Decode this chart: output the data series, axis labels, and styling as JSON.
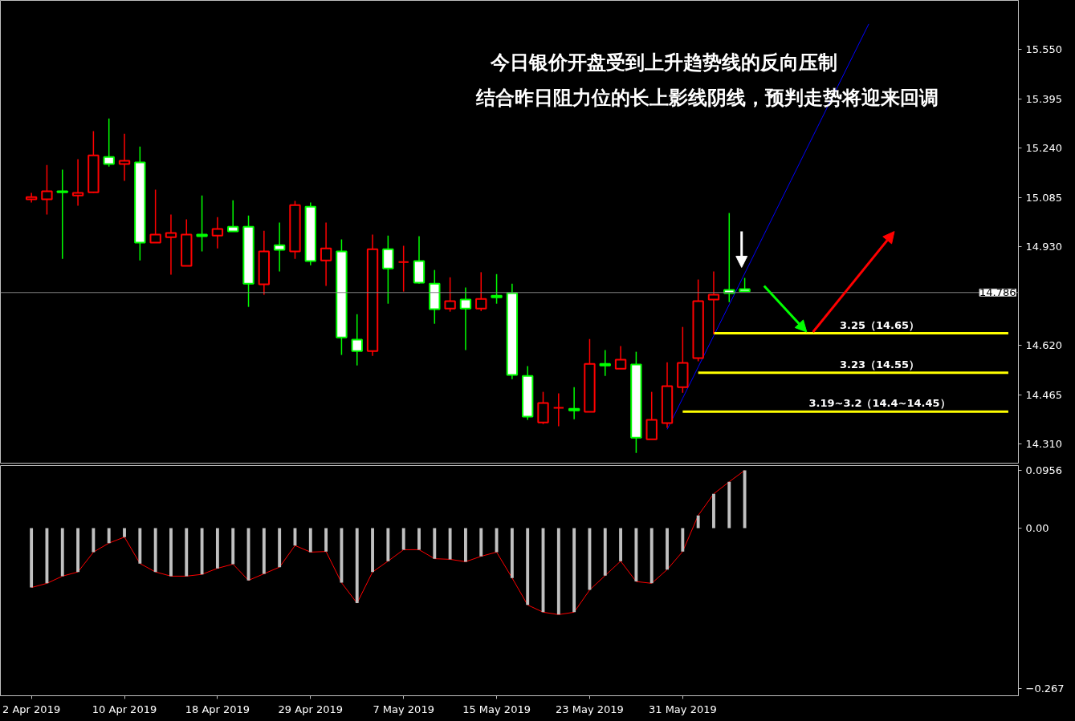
{
  "chart_data": [
    {
      "type": "candlestick",
      "annotations": [
        "今日银价开盘受到上升趋势线的反向压制",
        "结合昨日阻力位的长上影线阴线，预判走势将迎来回调",
        {
          "text": "3.25（14.65）",
          "y": 14.658
        },
        {
          "text": "3.23（14.55）",
          "y": 14.534
        },
        {
          "text": "3.19~3.2（14.4~14.45）",
          "y": 14.412
        }
      ],
      "categories": [
        null,
        null,
        null,
        null,
        null,
        null,
        null,
        null,
        null,
        null,
        null,
        null,
        null,
        null,
        null,
        null,
        null,
        null,
        null,
        null,
        null,
        null,
        null,
        null,
        null,
        null,
        null,
        null,
        null,
        null,
        null,
        null,
        null,
        null,
        null,
        null,
        null,
        null,
        null,
        null,
        null,
        null,
        null,
        null,
        null,
        null,
        null,
        null,
        null,
        null,
        null,
        null,
        null,
        null,
        null,
        null,
        null,
        null,
        null,
        null,
        null,
        null,
        null,
        null
      ],
      "ohlc": [
        [
          15.079,
          15.099,
          15.069,
          15.086
        ],
        [
          15.079,
          15.187,
          15.031,
          15.104
        ],
        [
          15.104,
          15.172,
          14.892,
          15.101
        ],
        [
          15.091,
          15.205,
          15.059,
          15.099
        ],
        [
          15.101,
          15.293,
          15.099,
          15.217
        ],
        [
          15.212,
          15.333,
          15.182,
          15.19
        ],
        [
          15.19,
          15.285,
          15.137,
          15.2
        ],
        [
          15.195,
          15.245,
          14.887,
          14.943
        ],
        [
          14.943,
          15.109,
          14.943,
          14.968
        ],
        [
          14.96,
          15.031,
          14.842,
          14.973
        ],
        [
          14.87,
          15.016,
          14.87,
          14.968
        ],
        [
          14.968,
          15.091,
          14.915,
          14.963
        ],
        [
          14.965,
          15.023,
          14.925,
          14.986
        ],
        [
          14.993,
          15.076,
          14.978,
          14.978
        ],
        [
          14.993,
          15.028,
          14.741,
          14.814
        ],
        [
          14.812,
          14.98,
          14.779,
          14.915
        ],
        [
          14.935,
          15.006,
          14.852,
          14.92
        ],
        [
          14.915,
          15.074,
          14.892,
          15.061
        ],
        [
          15.056,
          15.069,
          14.872,
          14.885
        ],
        [
          14.887,
          15.006,
          14.807,
          14.925
        ],
        [
          14.915,
          14.953,
          14.59,
          14.645
        ],
        [
          14.638,
          14.718,
          14.557,
          14.602
        ],
        [
          14.602,
          14.968,
          14.587,
          14.922
        ],
        [
          14.922,
          14.965,
          14.751,
          14.862
        ],
        [
          14.882,
          14.933,
          14.789,
          14.882
        ],
        [
          14.885,
          14.963,
          14.814,
          14.817
        ],
        [
          14.814,
          14.857,
          14.688,
          14.734
        ],
        [
          14.736,
          14.834,
          14.726,
          14.759
        ],
        [
          14.764,
          14.802,
          14.605,
          14.736
        ],
        [
          14.736,
          14.85,
          14.728,
          14.766
        ],
        [
          14.776,
          14.844,
          14.751,
          14.771
        ],
        [
          14.784,
          14.814,
          14.514,
          14.527
        ],
        [
          14.524,
          14.555,
          14.386,
          14.396
        ],
        [
          14.378,
          14.474,
          14.373,
          14.439
        ],
        [
          14.424,
          14.469,
          14.366,
          14.424
        ],
        [
          14.421,
          14.489,
          14.388,
          14.416
        ],
        [
          14.411,
          14.64,
          14.411,
          14.562
        ],
        [
          14.562,
          14.605,
          14.524,
          14.557
        ],
        [
          14.547,
          14.618,
          14.547,
          14.575
        ],
        [
          14.56,
          14.6,
          14.282,
          14.33
        ],
        [
          14.325,
          14.474,
          14.325,
          14.386
        ],
        [
          14.376,
          14.567,
          14.361,
          14.492
        ],
        [
          14.489,
          14.678,
          14.471,
          14.565
        ],
        [
          14.58,
          14.827,
          14.57,
          14.759
        ],
        [
          14.764,
          14.852,
          14.655,
          14.779
        ],
        [
          14.794,
          15.036,
          14.756,
          14.784
        ],
        [
          14.797,
          14.832,
          14.789,
          14.789
        ],
        null,
        null,
        null,
        null,
        null,
        null,
        null,
        null,
        null,
        null,
        null,
        null,
        null,
        null,
        null,
        null,
        null
      ],
      "colors": [
        "#ff0000",
        "#ff0000",
        "#00ff00",
        "#ff0000",
        "#ff0000",
        "#00ff00",
        "#ff0000",
        "#00ff00",
        "#ff0000",
        "#ff0000",
        "#ff0000",
        "#00ff00",
        "#ff0000",
        "#00ff00",
        "#00ff00",
        "#ff0000",
        "#00ff00",
        "#ff0000",
        "#00ff00",
        "#ff0000",
        "#00ff00",
        "#00ff00",
        "#ff0000",
        "#00ff00",
        "#ff0000",
        "#00ff00",
        "#00ff00",
        "#ff0000",
        "#00ff00",
        "#ff0000",
        "#00ff00",
        "#00ff00",
        "#00ff00",
        "#ff0000",
        "#ff0000",
        "#00ff00",
        "#ff0000",
        "#00ff00",
        "#ff0000",
        "#00ff00",
        "#ff0000",
        "#ff0000",
        "#ff0000",
        "#ff0000",
        "#ff0000",
        "#00ff00",
        "#00ff00",
        null,
        null,
        null,
        null,
        null,
        null,
        null,
        null,
        null,
        null,
        null,
        null,
        null,
        null,
        null,
        null,
        null
      ],
      "series": [
        {
          "type": "line",
          "color": "#0000ff",
          "values": [
            null,
            null,
            null,
            null,
            null,
            null,
            null,
            null,
            null,
            null,
            null,
            null,
            null,
            null,
            null,
            null,
            null,
            null,
            null,
            null,
            null,
            null,
            null,
            null,
            null,
            null,
            null,
            null,
            null,
            null,
            null,
            null,
            null,
            null,
            null,
            null,
            null,
            null,
            null,
            null,
            null,
            14.356,
            14.454,
            14.552,
            14.65,
            14.748,
            14.846,
            14.944,
            15.042,
            15.14,
            15.238,
            15.336,
            15.434,
            15.532,
            15.63,
            null,
            null,
            null,
            null,
            null,
            null,
            null,
            null,
            null
          ]
        },
        {
          "type": "line",
          "color": "#ffff00",
          "values": [
            null,
            null,
            null,
            null,
            null,
            null,
            null,
            null,
            null,
            null,
            null,
            null,
            null,
            null,
            null,
            null,
            null,
            null,
            null,
            null,
            null,
            null,
            null,
            null,
            null,
            null,
            null,
            null,
            null,
            null,
            null,
            null,
            null,
            null,
            null,
            null,
            null,
            null,
            null,
            null,
            null,
            null,
            null,
            null,
            14.658,
            14.658,
            14.658,
            14.658,
            14.658,
            14.658,
            14.658,
            14.658,
            14.658,
            14.658,
            14.658,
            14.658,
            14.658,
            14.658,
            14.658,
            14.658,
            14.658,
            14.658,
            14.658,
            14.658
          ]
        },
        {
          "type": "line",
          "color": "#ffff00",
          "values": [
            null,
            null,
            null,
            null,
            null,
            null,
            null,
            null,
            null,
            null,
            null,
            null,
            null,
            null,
            null,
            null,
            null,
            null,
            null,
            null,
            null,
            null,
            null,
            null,
            null,
            null,
            null,
            null,
            null,
            null,
            null,
            null,
            null,
            null,
            null,
            null,
            null,
            null,
            null,
            null,
            null,
            null,
            null,
            14.534,
            14.534,
            14.534,
            14.534,
            14.534,
            14.534,
            14.534,
            14.534,
            14.534,
            14.534,
            14.534,
            14.534,
            14.534,
            14.534,
            14.534,
            14.534,
            14.534,
            14.534,
            14.534,
            14.534,
            14.534
          ]
        },
        {
          "type": "line",
          "color": "#ffff00",
          "values": [
            null,
            null,
            null,
            null,
            null,
            null,
            null,
            null,
            null,
            null,
            null,
            null,
            null,
            null,
            null,
            null,
            null,
            null,
            null,
            null,
            null,
            null,
            null,
            null,
            null,
            null,
            null,
            null,
            null,
            null,
            null,
            null,
            null,
            null,
            null,
            null,
            null,
            null,
            null,
            null,
            null,
            null,
            14.412,
            14.412,
            14.412,
            14.412,
            14.412,
            14.412,
            14.412,
            14.412,
            14.412,
            14.412,
            14.412,
            14.412,
            14.412,
            14.412,
            14.412,
            14.412,
            14.412,
            14.412,
            14.412,
            14.412,
            14.412,
            14.412
          ]
        }
      ],
      "ref_lines": [
        {
          "axis": "y",
          "value": 14.786,
          "label": "14.786",
          "color": "#808080"
        }
      ],
      "ylim": [
        14.25,
        15.704
      ],
      "yticks": [
        {
          "value": 15.55,
          "label": "15.550"
        },
        15.395,
        {
          "value": 15.24,
          "label": "15.240"
        },
        15.085,
        {
          "value": 14.93,
          "label": "14.930"
        },
        {
          "value": 14.62,
          "label": "14.620"
        },
        14.465,
        {
          "value": 14.31,
          "label": "14.310"
        }
      ],
      "tick_labels": "y"
    },
    {
      "type": "bar",
      "categories": [
        "2 Apr 2019",
        null,
        null,
        null,
        null,
        null,
        "10 Apr 2019",
        null,
        null,
        null,
        null,
        null,
        "18 Apr 2019",
        null,
        null,
        null,
        null,
        null,
        "29 Apr 2019",
        null,
        null,
        null,
        null,
        null,
        "7 May 2019",
        null,
        null,
        null,
        null,
        null,
        "15 May 2019",
        null,
        null,
        null,
        null,
        null,
        "23 May 2019",
        null,
        null,
        null,
        null,
        null,
        "31 May 2019",
        null,
        null,
        null,
        null,
        null,
        null,
        null,
        null,
        null,
        null,
        null,
        null,
        null,
        null,
        null,
        null,
        null,
        null,
        null,
        null,
        null
      ],
      "series": [
        {
          "type": "bar",
          "color": "#c0c0c0",
          "values": [
            -0.099,
            -0.092,
            -0.08,
            -0.073,
            -0.04,
            -0.025,
            -0.015,
            -0.059,
            -0.073,
            -0.08,
            -0.08,
            -0.077,
            -0.067,
            -0.06,
            -0.087,
            -0.076,
            -0.065,
            -0.029,
            -0.04,
            -0.039,
            -0.091,
            -0.125,
            -0.073,
            -0.055,
            -0.036,
            -0.036,
            -0.051,
            -0.052,
            -0.056,
            -0.047,
            -0.04,
            -0.083,
            -0.128,
            -0.14,
            -0.144,
            -0.14,
            -0.103,
            -0.079,
            -0.055,
            -0.089,
            -0.092,
            -0.069,
            -0.039,
            0.021,
            0.057,
            0.077,
            0.096,
            null,
            null,
            null,
            null,
            null,
            null,
            null,
            null,
            null,
            null,
            null,
            null,
            null,
            null,
            null,
            null,
            null
          ]
        },
        {
          "type": "line",
          "color": "#ff0000",
          "values": [
            -0.099,
            -0.092,
            -0.08,
            -0.073,
            -0.04,
            -0.025,
            -0.015,
            -0.059,
            -0.073,
            -0.08,
            -0.08,
            -0.077,
            -0.067,
            -0.06,
            -0.087,
            -0.076,
            -0.065,
            -0.029,
            -0.04,
            -0.039,
            -0.091,
            -0.125,
            -0.073,
            -0.055,
            -0.036,
            -0.036,
            -0.051,
            -0.052,
            -0.056,
            -0.047,
            -0.04,
            -0.083,
            -0.128,
            -0.14,
            -0.144,
            -0.14,
            -0.103,
            -0.079,
            -0.055,
            -0.089,
            -0.092,
            -0.069,
            -0.039,
            0.021,
            0.057,
            0.077,
            0.096,
            null,
            null,
            null,
            null,
            null,
            null,
            null,
            null,
            null,
            null,
            null,
            null,
            null,
            null,
            null,
            null,
            null
          ]
        }
      ],
      "ylim": [
        -0.279,
        0.104
      ],
      "yticks": [
        {
          "value": 0.0956,
          "label": "0.0956"
        },
        {
          "value": 0,
          "label": "0.00"
        },
        -0.267
      ]
    }
  ]
}
